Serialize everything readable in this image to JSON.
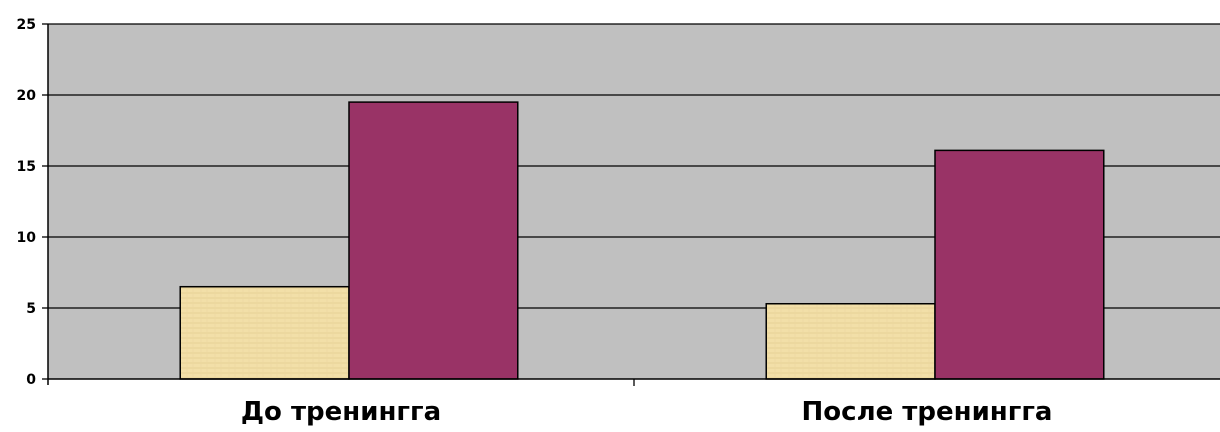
{
  "chart_data": {
    "type": "bar",
    "categories": [
      "До тренингга",
      "После тренингга"
    ],
    "series": [
      {
        "values": [
          6.5,
          5.3
        ]
      },
      {
        "values": [
          19.5,
          16.1
        ]
      }
    ],
    "ylim": [
      0,
      25
    ],
    "yticks": [
      0,
      5,
      10,
      15,
      20,
      25
    ],
    "grid": true,
    "legend": "none",
    "colors": {
      "plot_background": "#c0c0c0",
      "series": [
        "#f2dfa8",
        "#993366"
      ],
      "grid": "#000000",
      "page_background": "#ffffff"
    }
  }
}
